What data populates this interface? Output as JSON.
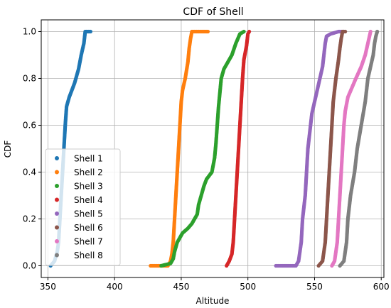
{
  "chart_data": {
    "type": "scatter",
    "title": "CDF of Shell",
    "xlabel": "Altitude",
    "ylabel": "CDF",
    "xlim": [
      345,
      602
    ],
    "ylim": [
      -0.05,
      1.05
    ],
    "xticks": [
      350,
      400,
      450,
      500,
      550,
      600
    ],
    "yticks": [
      0.0,
      0.2,
      0.4,
      0.6,
      0.8,
      1.0
    ],
    "xtick_labels": [
      "350",
      "400",
      "450",
      "500",
      "550",
      "600"
    ],
    "ytick_labels": [
      "0.0",
      "0.2",
      "0.4",
      "0.6",
      "0.8",
      "1.0"
    ],
    "grid": true,
    "legend_position": "lower-left",
    "series": [
      {
        "name": "Shell 1",
        "color": "#1f77b4",
        "points": [
          [
            352,
            0.0
          ],
          [
            355,
            0.02
          ],
          [
            357,
            0.06
          ],
          [
            358,
            0.1
          ],
          [
            359,
            0.2
          ],
          [
            360,
            0.3
          ],
          [
            361,
            0.4
          ],
          [
            362,
            0.5
          ],
          [
            363,
            0.6
          ],
          [
            364,
            0.68
          ],
          [
            366,
            0.72
          ],
          [
            370,
            0.78
          ],
          [
            373,
            0.84
          ],
          [
            375,
            0.9
          ],
          [
            377,
            0.95
          ],
          [
            378,
            1.0
          ],
          [
            382,
            1.0
          ]
        ]
      },
      {
        "name": "Shell 2",
        "color": "#ff7f0e",
        "points": [
          [
            427,
            0.0
          ],
          [
            435,
            0.0
          ],
          [
            440,
            0.0
          ],
          [
            442,
            0.02
          ],
          [
            443,
            0.05
          ],
          [
            444,
            0.1
          ],
          [
            445,
            0.2
          ],
          [
            446,
            0.3
          ],
          [
            447,
            0.4
          ],
          [
            448,
            0.5
          ],
          [
            449,
            0.6
          ],
          [
            450,
            0.7
          ],
          [
            451,
            0.75
          ],
          [
            453,
            0.8
          ],
          [
            455,
            0.87
          ],
          [
            456,
            0.93
          ],
          [
            457,
            0.97
          ],
          [
            458,
            1.0
          ],
          [
            465,
            1.0
          ],
          [
            470,
            1.0
          ]
        ]
      },
      {
        "name": "Shell 3",
        "color": "#2ca02c",
        "points": [
          [
            435,
            0.0
          ],
          [
            442,
            0.01
          ],
          [
            444,
            0.03
          ],
          [
            445,
            0.06
          ],
          [
            447,
            0.1
          ],
          [
            451,
            0.14
          ],
          [
            455,
            0.16
          ],
          [
            458,
            0.18
          ],
          [
            462,
            0.22
          ],
          [
            463,
            0.26
          ],
          [
            465,
            0.3
          ],
          [
            467,
            0.34
          ],
          [
            469,
            0.37
          ],
          [
            473,
            0.4
          ],
          [
            475,
            0.46
          ],
          [
            476,
            0.52
          ],
          [
            477,
            0.6
          ],
          [
            478,
            0.68
          ],
          [
            479,
            0.74
          ],
          [
            480,
            0.8
          ],
          [
            482,
            0.84
          ],
          [
            485,
            0.87
          ],
          [
            488,
            0.9
          ],
          [
            491,
            0.95
          ],
          [
            494,
            0.99
          ],
          [
            497,
            1.0
          ]
        ]
      },
      {
        "name": "Shell 4",
        "color": "#d62728",
        "points": [
          [
            484,
            0.0
          ],
          [
            486,
            0.02
          ],
          [
            488,
            0.05
          ],
          [
            489,
            0.1
          ],
          [
            490,
            0.2
          ],
          [
            491,
            0.3
          ],
          [
            492,
            0.4
          ],
          [
            493,
            0.5
          ],
          [
            494,
            0.6
          ],
          [
            495,
            0.7
          ],
          [
            496,
            0.8
          ],
          [
            497,
            0.88
          ],
          [
            499,
            0.94
          ],
          [
            500,
            0.99
          ],
          [
            501,
            1.0
          ]
        ]
      },
      {
        "name": "Shell 5",
        "color": "#9467bd",
        "points": [
          [
            521,
            0.0
          ],
          [
            530,
            0.0
          ],
          [
            536,
            0.0
          ],
          [
            538,
            0.02
          ],
          [
            539,
            0.06
          ],
          [
            540,
            0.1
          ],
          [
            541,
            0.2
          ],
          [
            543,
            0.3
          ],
          [
            544,
            0.4
          ],
          [
            545,
            0.5
          ],
          [
            546,
            0.55
          ],
          [
            547,
            0.6
          ],
          [
            548,
            0.65
          ],
          [
            550,
            0.7
          ],
          [
            552,
            0.75
          ],
          [
            554,
            0.8
          ],
          [
            556,
            0.85
          ],
          [
            557,
            0.9
          ],
          [
            558,
            0.95
          ],
          [
            559,
            0.98
          ],
          [
            562,
            0.99
          ],
          [
            568,
            1.0
          ],
          [
            572,
            1.0
          ]
        ]
      },
      {
        "name": "Shell 6",
        "color": "#8c564b",
        "points": [
          [
            553,
            0.0
          ],
          [
            556,
            0.02
          ],
          [
            557,
            0.06
          ],
          [
            558,
            0.1
          ],
          [
            559,
            0.2
          ],
          [
            560,
            0.3
          ],
          [
            561,
            0.4
          ],
          [
            562,
            0.5
          ],
          [
            563,
            0.6
          ],
          [
            564,
            0.7
          ],
          [
            566,
            0.8
          ],
          [
            568,
            0.88
          ],
          [
            569,
            0.93
          ],
          [
            570,
            0.97
          ],
          [
            571,
            1.0
          ],
          [
            573,
            1.0
          ]
        ]
      },
      {
        "name": "Shell 7",
        "color": "#e377c2",
        "points": [
          [
            563,
            0.0
          ],
          [
            565,
            0.02
          ],
          [
            566,
            0.06
          ],
          [
            567,
            0.1
          ],
          [
            568,
            0.2
          ],
          [
            569,
            0.3
          ],
          [
            570,
            0.4
          ],
          [
            571,
            0.5
          ],
          [
            572,
            0.6
          ],
          [
            573,
            0.66
          ],
          [
            575,
            0.72
          ],
          [
            578,
            0.76
          ],
          [
            581,
            0.8
          ],
          [
            585,
            0.85
          ],
          [
            588,
            0.9
          ],
          [
            590,
            0.95
          ],
          [
            592,
            1.0
          ]
        ]
      },
      {
        "name": "Shell 8",
        "color": "#7f7f7f",
        "points": [
          [
            569,
            0.0
          ],
          [
            572,
            0.02
          ],
          [
            573,
            0.06
          ],
          [
            574,
            0.1
          ],
          [
            575,
            0.2
          ],
          [
            577,
            0.3
          ],
          [
            580,
            0.4
          ],
          [
            582,
            0.5
          ],
          [
            585,
            0.6
          ],
          [
            588,
            0.7
          ],
          [
            590,
            0.8
          ],
          [
            592,
            0.85
          ],
          [
            594,
            0.9
          ],
          [
            595,
            0.95
          ],
          [
            596,
            0.98
          ],
          [
            597,
            1.0
          ]
        ]
      }
    ]
  }
}
